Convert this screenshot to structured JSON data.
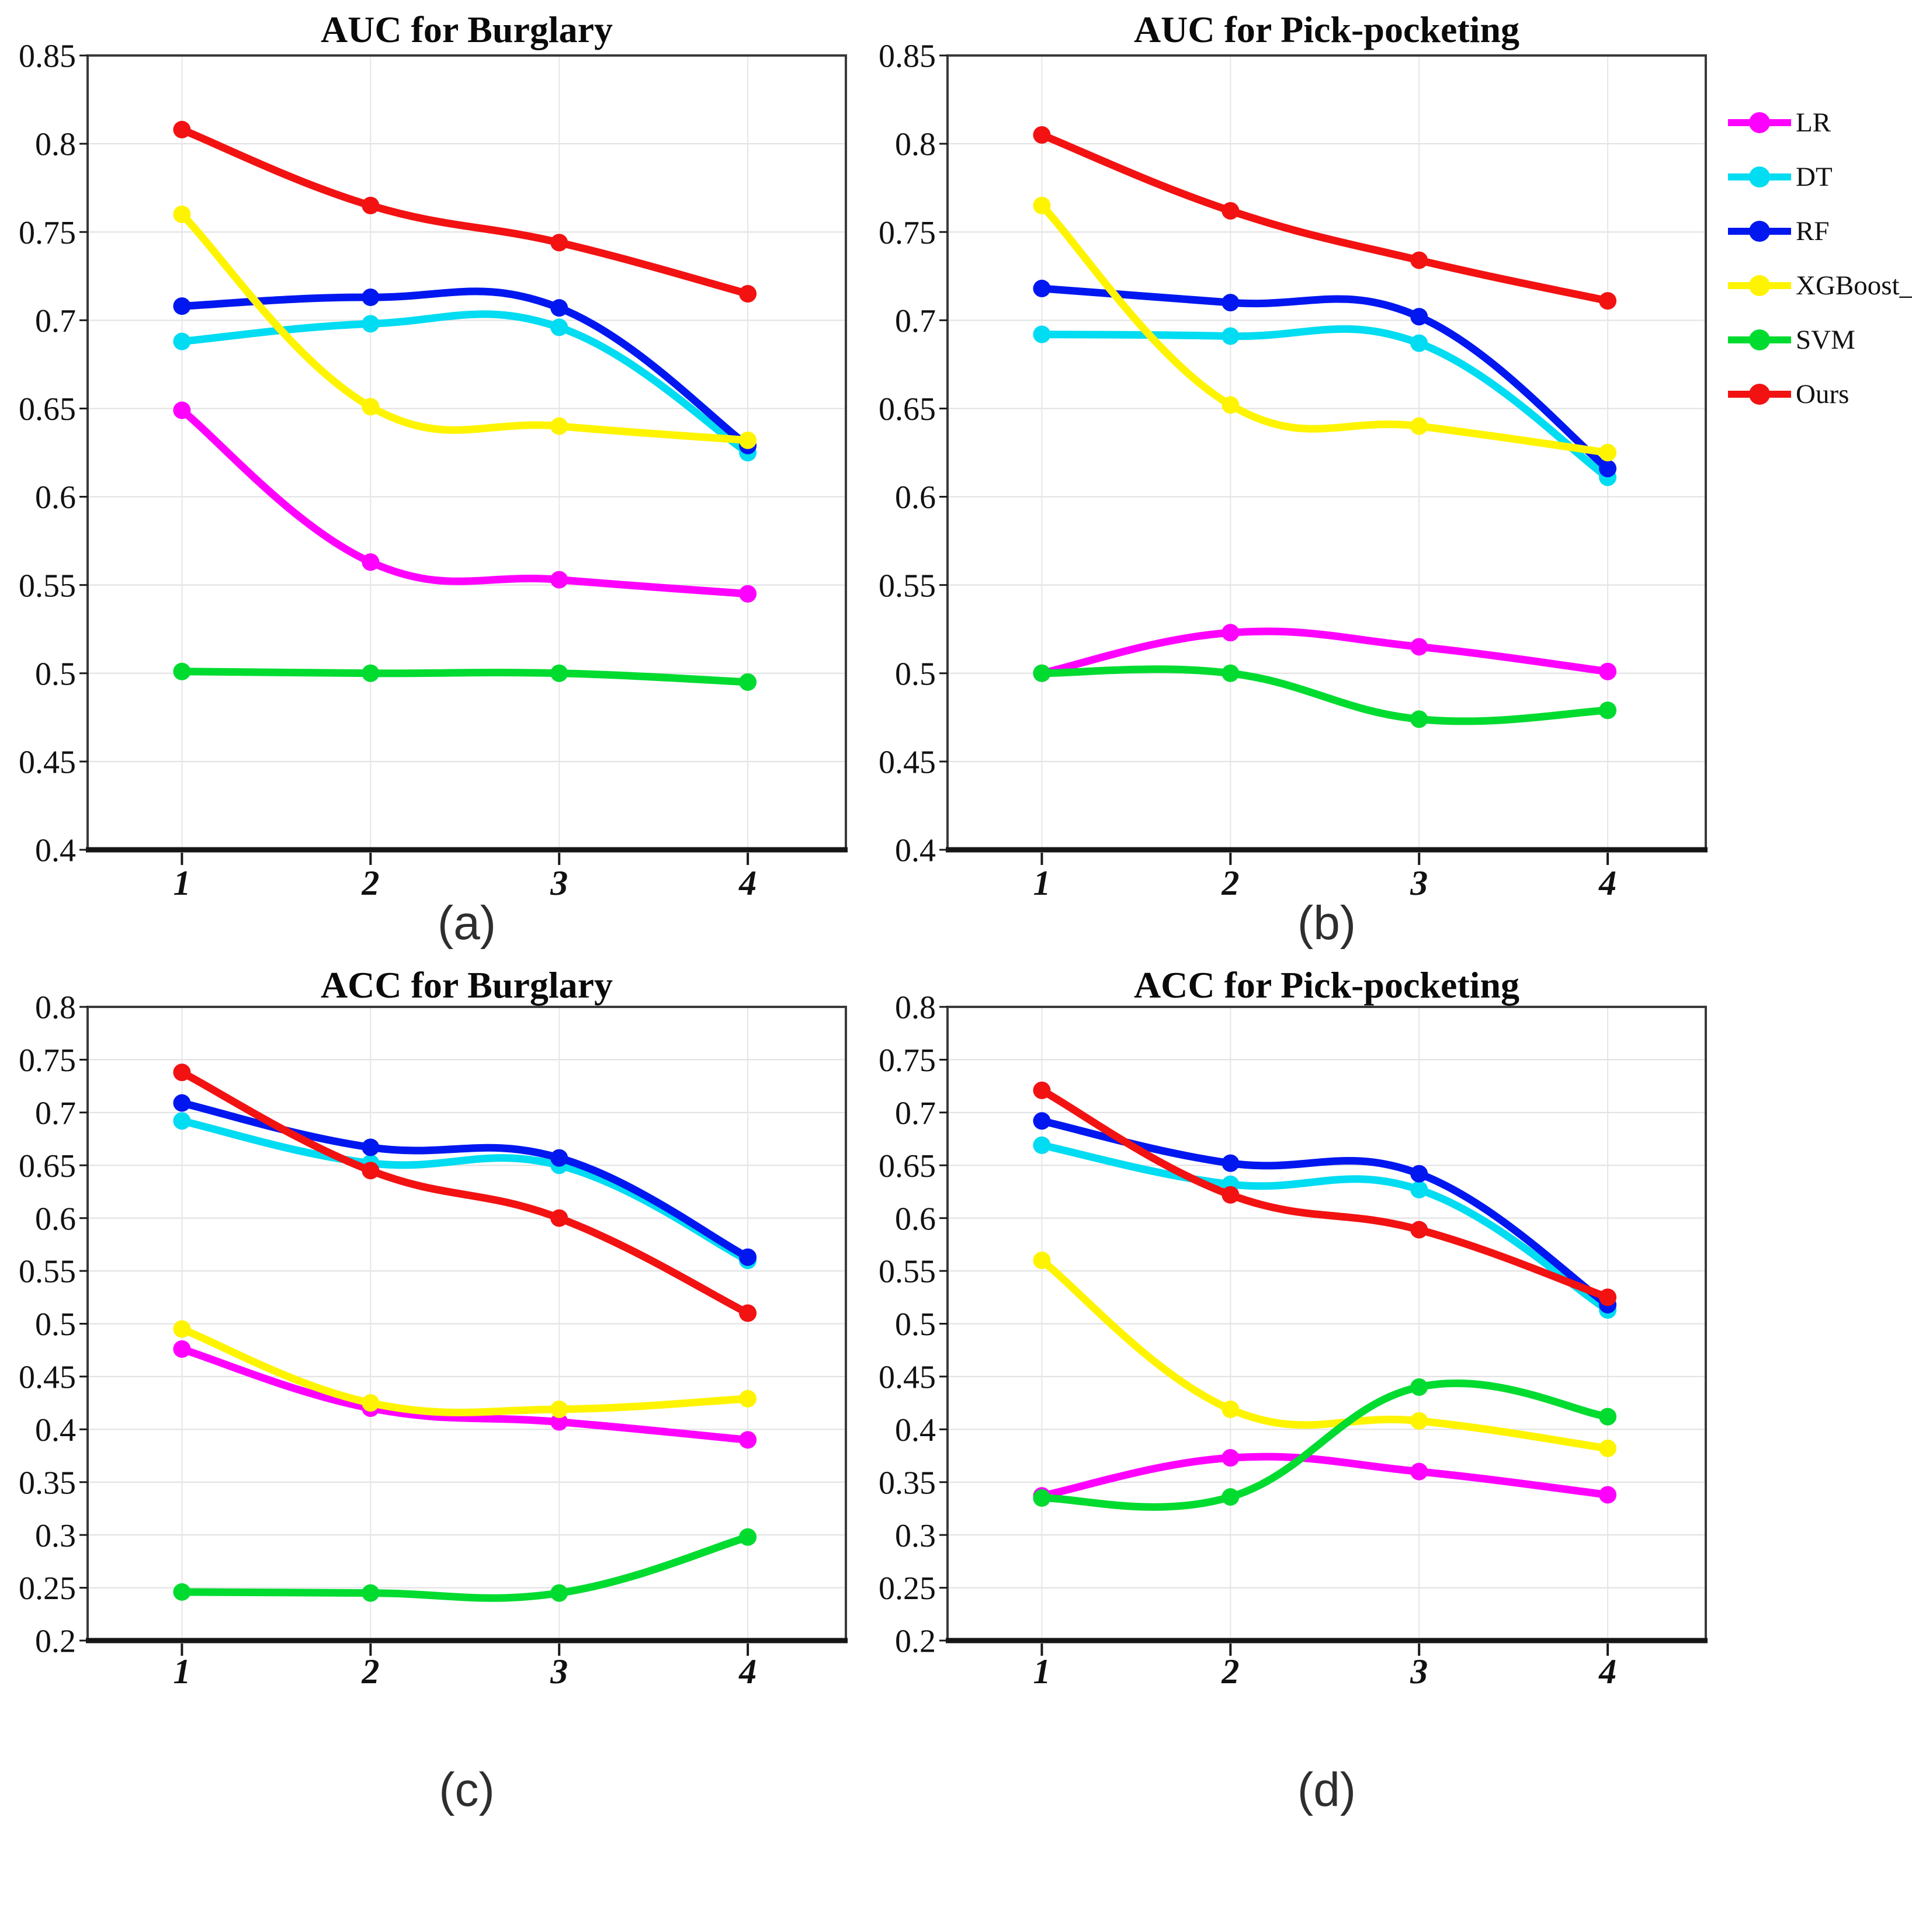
{
  "figure": {
    "background": "#ffffff"
  },
  "legend": {
    "position": "right-top",
    "items": [
      {
        "label": "LR",
        "color": "#FF00FF"
      },
      {
        "label": "DT",
        "color": "#00DCF2"
      },
      {
        "label": "RF",
        "color": "#0017EF"
      },
      {
        "label": "XGBoost_",
        "color": "#FFF400"
      },
      {
        "label": "SVM",
        "color": "#00DB30"
      },
      {
        "label": "Ours",
        "color": "#F21212"
      }
    ]
  },
  "chart_data": [
    {
      "id": "a",
      "type": "line",
      "title": "AUC for Burglary",
      "sublabel": "(a)",
      "x": [
        1,
        2,
        3,
        4
      ],
      "x_ticks": [
        "1",
        "2",
        "3",
        "4"
      ],
      "ylim": [
        0.4,
        0.85
      ],
      "ytick_step": 0.05,
      "grid": true,
      "legend_position": "right-top",
      "series": [
        {
          "name": "LR",
          "values": [
            0.649,
            0.563,
            0.553,
            0.545
          ]
        },
        {
          "name": "DT",
          "values": [
            0.688,
            0.698,
            0.696,
            0.625
          ]
        },
        {
          "name": "RF",
          "values": [
            0.708,
            0.713,
            0.707,
            0.629
          ]
        },
        {
          "name": "XGBoost_",
          "values": [
            0.76,
            0.651,
            0.64,
            0.632
          ]
        },
        {
          "name": "SVM",
          "values": [
            0.501,
            0.5,
            0.5,
            0.495
          ]
        },
        {
          "name": "Ours",
          "values": [
            0.808,
            0.765,
            0.744,
            0.715
          ]
        }
      ]
    },
    {
      "id": "b",
      "type": "line",
      "title": "AUC for Pick-pocketing",
      "sublabel": "(b)",
      "x": [
        1,
        2,
        3,
        4
      ],
      "x_ticks": [
        "1",
        "2",
        "3",
        "4"
      ],
      "ylim": [
        0.4,
        0.85
      ],
      "ytick_step": 0.05,
      "grid": true,
      "legend_position": "right-top",
      "series": [
        {
          "name": "LR",
          "values": [
            0.5,
            0.523,
            0.515,
            0.501
          ]
        },
        {
          "name": "DT",
          "values": [
            0.692,
            0.691,
            0.687,
            0.611
          ]
        },
        {
          "name": "RF",
          "values": [
            0.718,
            0.71,
            0.702,
            0.616
          ]
        },
        {
          "name": "XGBoost_",
          "values": [
            0.765,
            0.652,
            0.64,
            0.625
          ]
        },
        {
          "name": "SVM",
          "values": [
            0.5,
            0.5,
            0.474,
            0.479
          ]
        },
        {
          "name": "Ours",
          "values": [
            0.805,
            0.762,
            0.734,
            0.711
          ]
        }
      ]
    },
    {
      "id": "c",
      "type": "line",
      "title": "ACC for Burglary",
      "sublabel": "(c)",
      "x": [
        1,
        2,
        3,
        4
      ],
      "x_ticks": [
        "1",
        "2",
        "3",
        "4"
      ],
      "ylim": [
        0.2,
        0.8
      ],
      "ytick_step": 0.05,
      "grid": true,
      "legend_position": "right-top",
      "series": [
        {
          "name": "LR",
          "values": [
            0.476,
            0.42,
            0.407,
            0.39
          ]
        },
        {
          "name": "DT",
          "values": [
            0.692,
            0.652,
            0.65,
            0.56
          ]
        },
        {
          "name": "RF",
          "values": [
            0.709,
            0.667,
            0.657,
            0.563
          ]
        },
        {
          "name": "XGBoost_",
          "values": [
            0.495,
            0.425,
            0.419,
            0.429
          ]
        },
        {
          "name": "SVM",
          "values": [
            0.246,
            0.245,
            0.245,
            0.298
          ]
        },
        {
          "name": "Ours",
          "values": [
            0.738,
            0.645,
            0.6,
            0.51
          ]
        }
      ]
    },
    {
      "id": "d",
      "type": "line",
      "title": "ACC for Pick-pocketing",
      "sublabel": "(d)",
      "x": [
        1,
        2,
        3,
        4
      ],
      "x_ticks": [
        "1",
        "2",
        "3",
        "4"
      ],
      "ylim": [
        0.2,
        0.8
      ],
      "ytick_step": 0.05,
      "grid": true,
      "legend_position": "right-top",
      "series": [
        {
          "name": "LR",
          "values": [
            0.337,
            0.373,
            0.36,
            0.338
          ]
        },
        {
          "name": "DT",
          "values": [
            0.669,
            0.632,
            0.627,
            0.513
          ]
        },
        {
          "name": "RF",
          "values": [
            0.692,
            0.652,
            0.642,
            0.518
          ]
        },
        {
          "name": "XGBoost_",
          "values": [
            0.56,
            0.419,
            0.408,
            0.382
          ]
        },
        {
          "name": "SVM",
          "values": [
            0.335,
            0.336,
            0.44,
            0.412
          ]
        },
        {
          "name": "Ours",
          "values": [
            0.721,
            0.622,
            0.589,
            0.525
          ]
        }
      ]
    }
  ]
}
